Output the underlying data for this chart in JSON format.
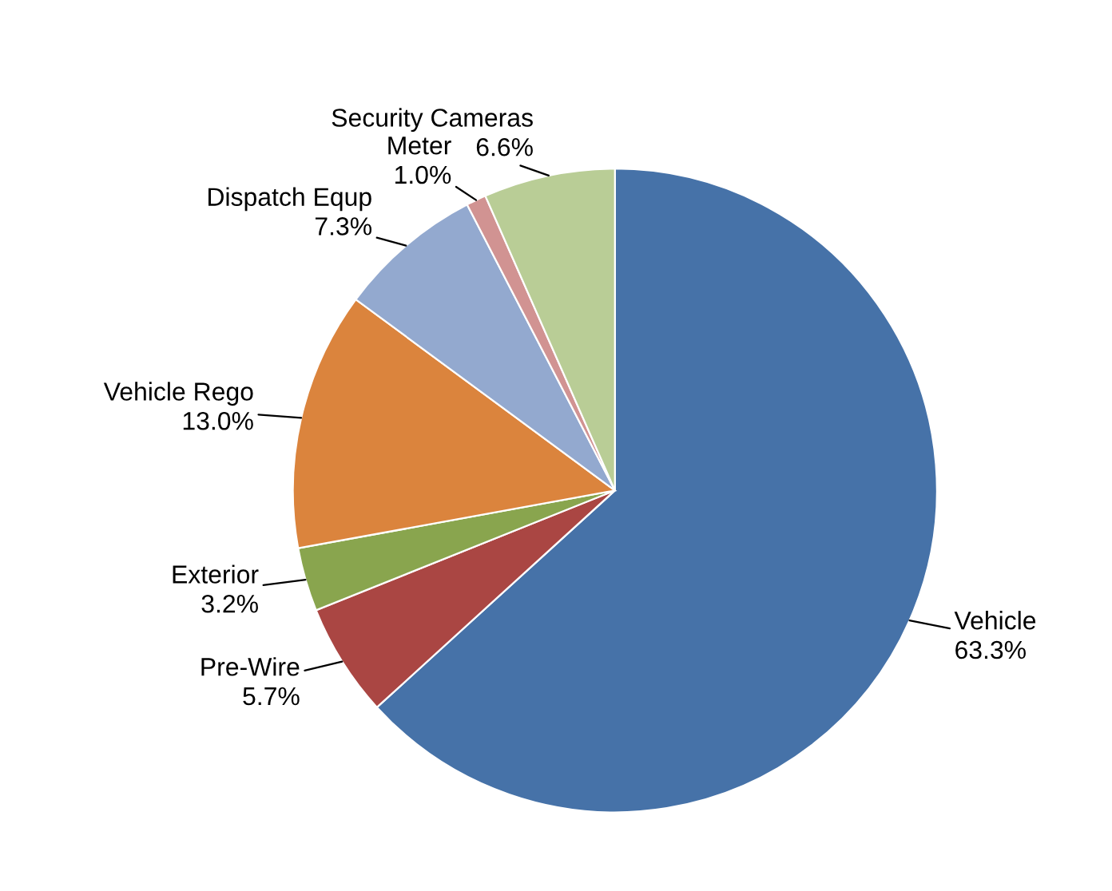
{
  "chart_data": {
    "type": "pie",
    "categories": [
      "Vehicle",
      "Pre-Wire",
      "Exterior",
      "Vehicle Rego",
      "Dispatch Equp",
      "Meter",
      "Security Cameras"
    ],
    "values": [
      63.3,
      5.7,
      3.2,
      13.0,
      7.3,
      1.0,
      6.6
    ],
    "value_labels": [
      "63.3%",
      "5.7%",
      "3.2%",
      "13.0%",
      "7.3%",
      "1.0%",
      "6.6%"
    ],
    "colors": [
      "#4672a8",
      "#aa4643",
      "#89a54e",
      "#db843d",
      "#93a9cf",
      "#d19392",
      "#b9cd96"
    ],
    "legend": false
  }
}
